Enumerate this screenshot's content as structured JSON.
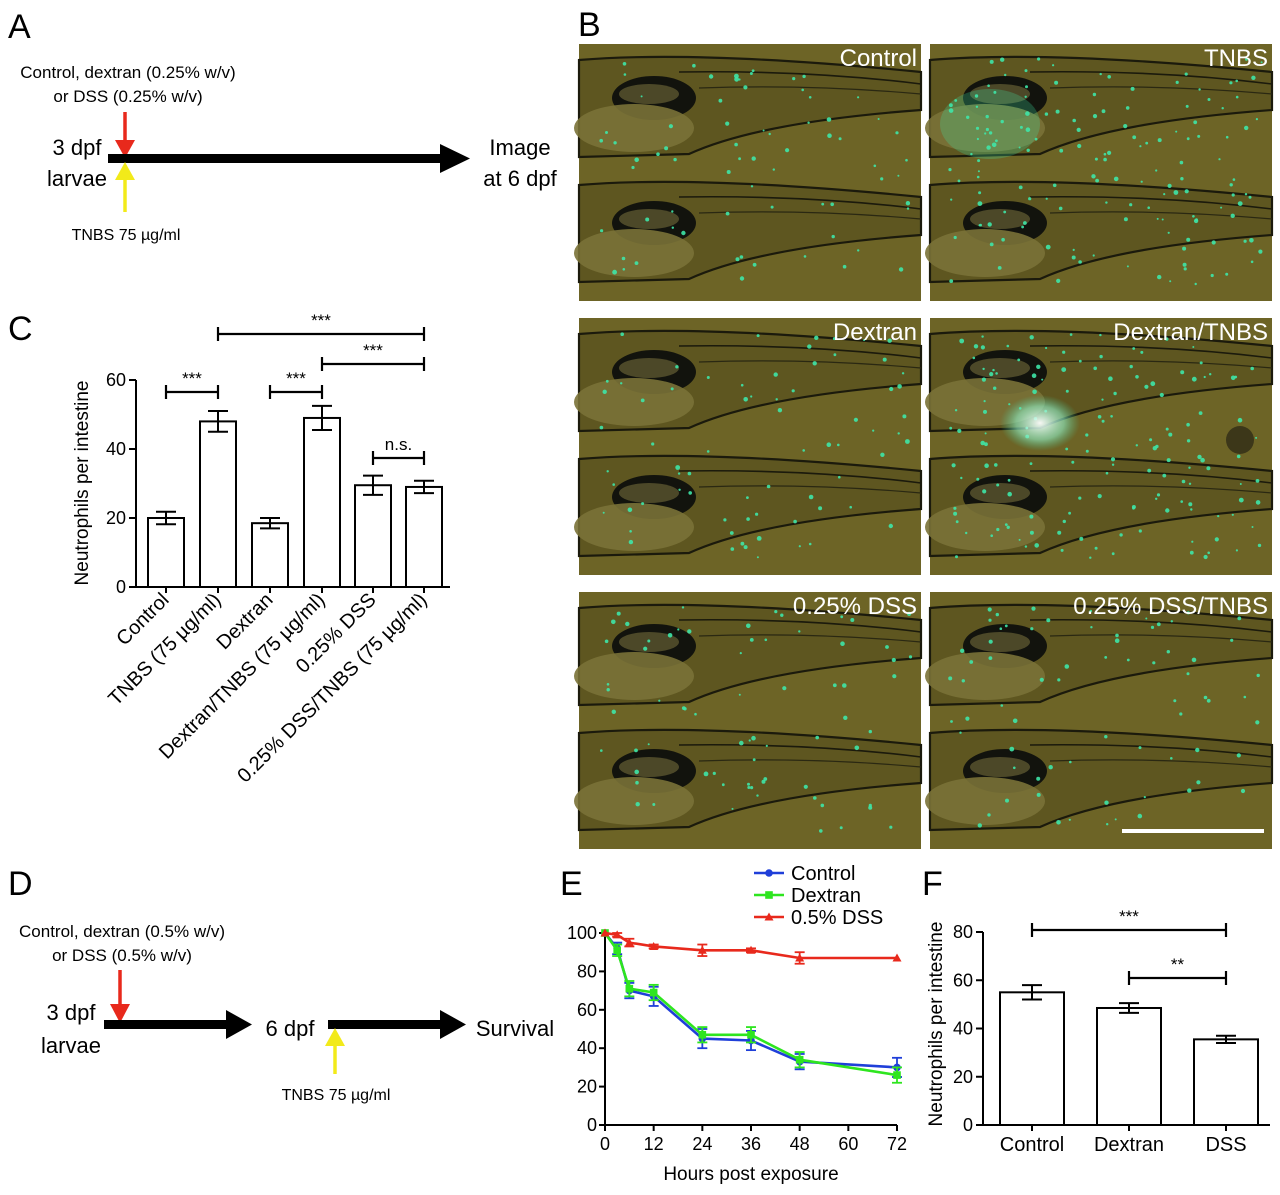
{
  "panel_labels": {
    "a": "A",
    "b": "B",
    "c": "C",
    "d": "D",
    "e": "E",
    "f": "F"
  },
  "panel_a": {
    "treatment_line1": "Control, dextran (0.25% w/v)",
    "treatment_line2": "or DSS (0.25% w/v)",
    "start_line1": "3 dpf",
    "start_line2": "larvae",
    "end_line1": "Image",
    "end_line2": "at 6 dpf",
    "tnbs": "TNBS 75 µg/ml"
  },
  "panel_b": {
    "labels": [
      "Control",
      "TNBS",
      "Dextran",
      "Dextran/TNBS",
      "0.25% DSS",
      "0.25% DSS/TNBS"
    ]
  },
  "panel_d": {
    "treatment_line1": "Control, dextran (0.5% w/v)",
    "treatment_line2": "or DSS (0.5% w/v)",
    "start_line1": "3 dpf",
    "start_line2": "larvae",
    "mid": "6 dpf",
    "end": "Survival",
    "tnbs": "TNBS 75 µg/ml"
  },
  "colors": {
    "arrow_red": "#e8291c",
    "arrow_yellow": "#f2ea1a",
    "control": "#1f3fd9",
    "dextran": "#2ee51f",
    "dss": "#e8291c"
  },
  "chart_data": [
    {
      "panel": "C",
      "type": "bar",
      "ylabel": "Neutrophils per intestine",
      "ylim": [
        0,
        60
      ],
      "yticks": [
        0,
        20,
        40,
        60
      ],
      "categories": [
        "Control",
        "TNBS (75 µg/ml)",
        "Dextran",
        "Dextran/TNBS (75 µg/ml)",
        "0.25% DSS",
        "0.25% DSS/TNBS (75 µg/ml)"
      ],
      "values": [
        20,
        48,
        18.5,
        49,
        29.5,
        29
      ],
      "errors": [
        1.8,
        3,
        1.5,
        3.5,
        2.8,
        1.8
      ],
      "significance": [
        {
          "from": 0,
          "to": 1,
          "label": "***"
        },
        {
          "from": 2,
          "to": 3,
          "label": "***"
        },
        {
          "from": 1,
          "to": 5,
          "label": "***"
        },
        {
          "from": 3,
          "to": 5,
          "label": "***"
        },
        {
          "from": 4,
          "to": 5,
          "label": "n.s."
        }
      ]
    },
    {
      "panel": "E",
      "type": "line",
      "xlabel": "Hours post exposure",
      "ylabel": "",
      "xlim": [
        0,
        72
      ],
      "ylim": [
        0,
        100
      ],
      "xticks": [
        0,
        12,
        24,
        36,
        48,
        60,
        72
      ],
      "yticks": [
        0,
        20,
        40,
        60,
        80,
        100
      ],
      "legend": "top",
      "series": [
        {
          "name": "Control",
          "x": [
            0,
            3,
            6,
            12,
            24,
            36,
            48,
            72
          ],
          "y": [
            100,
            92,
            70,
            67,
            45,
            44,
            33,
            30
          ],
          "err": [
            0,
            3,
            4,
            5,
            5,
            5,
            4,
            5
          ]
        },
        {
          "name": "Dextran",
          "x": [
            0,
            3,
            6,
            12,
            24,
            36,
            48,
            72
          ],
          "y": [
            100,
            91,
            71,
            69,
            47,
            47,
            34,
            26
          ],
          "err": [
            0,
            3,
            4,
            4,
            4,
            4,
            4,
            4
          ]
        },
        {
          "name": "0.5% DSS",
          "x": [
            0,
            3,
            6,
            12,
            24,
            36,
            48,
            72
          ],
          "y": [
            100,
            99,
            95,
            93,
            91,
            91,
            87,
            87
          ],
          "err": [
            0,
            1,
            2,
            1,
            3,
            1,
            3,
            0
          ]
        }
      ]
    },
    {
      "panel": "F",
      "type": "bar",
      "ylabel": "Neutrophils per intestine",
      "ylim": [
        0,
        80
      ],
      "yticks": [
        0,
        20,
        40,
        60,
        80
      ],
      "categories": [
        "Control",
        "Dextran",
        "DSS"
      ],
      "values": [
        55,
        48.5,
        35.5
      ],
      "errors": [
        3,
        2,
        1.5
      ],
      "significance": [
        {
          "from": 0,
          "to": 2,
          "label": "***"
        },
        {
          "from": 1,
          "to": 2,
          "label": "**"
        }
      ]
    }
  ]
}
